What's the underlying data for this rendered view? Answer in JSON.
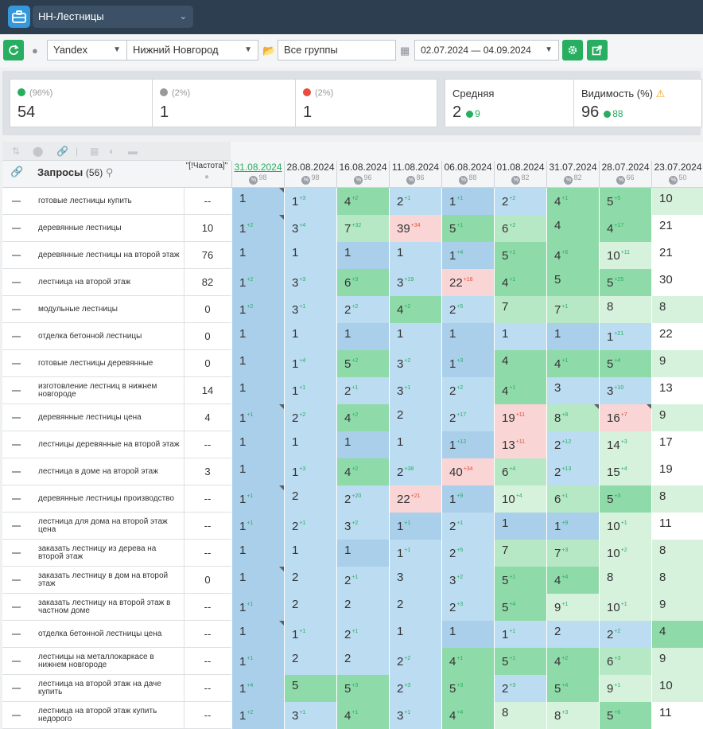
{
  "project": {
    "title": "НН-Лестницы"
  },
  "toolbar": {
    "engine": "Yandex",
    "region": "Нижний Новгород",
    "group": "Все группы",
    "daterange": "02.07.2024 — 04.09.2024"
  },
  "summary": {
    "up": {
      "pct": "(96%)",
      "value": "54"
    },
    "same": {
      "pct": "(2%)",
      "value": "1"
    },
    "down": {
      "pct": "(2%)",
      "value": "1"
    },
    "avg": {
      "title": "Средняя",
      "value": "2",
      "delta": "9"
    },
    "vis": {
      "title": "Видимость (%)",
      "value": "96",
      "delta": "88"
    }
  },
  "grid": {
    "queries_title": "Запросы",
    "queries_count": "(56)",
    "freq_title": "\"[!Частота]\"",
    "dates": [
      {
        "date": "31.08.2024",
        "vis": "98",
        "active": true
      },
      {
        "date": "28.08.2024",
        "vis": "98"
      },
      {
        "date": "16.08.2024",
        "vis": "96"
      },
      {
        "date": "11.08.2024",
        "vis": "86"
      },
      {
        "date": "06.08.2024",
        "vis": "88"
      },
      {
        "date": "01.08.2024",
        "vis": "82"
      },
      {
        "date": "31.07.2024",
        "vis": "82"
      },
      {
        "date": "28.07.2024",
        "vis": "66"
      },
      {
        "date": "23.07.2024",
        "vis": "50"
      }
    ],
    "rows": [
      {
        "q": "готовые лестницы купить",
        "f": "--",
        "c": [
          [
            "1",
            "",
            "b1",
            1
          ],
          [
            "1",
            "+3",
            "b2",
            0
          ],
          [
            "4",
            "+2",
            "g1",
            0
          ],
          [
            "2",
            "+1",
            "b2",
            0
          ],
          [
            "1",
            "+1",
            "b1",
            0
          ],
          [
            "2",
            "+2",
            "b2",
            0
          ],
          [
            "4",
            "+1",
            "g1",
            0
          ],
          [
            "5",
            "+5",
            "g1",
            0
          ],
          [
            "10",
            "",
            "g3",
            0
          ]
        ]
      },
      {
        "q": "деревянные лестницы",
        "f": "10",
        "c": [
          [
            "1",
            "+2",
            "b1",
            1
          ],
          [
            "3",
            "+4",
            "b2",
            0
          ],
          [
            "7",
            "+32",
            "g2",
            0
          ],
          [
            "39",
            "+34",
            "r",
            0
          ],
          [
            "5",
            "+1",
            "g1",
            0
          ],
          [
            "6",
            "+2",
            "g2",
            0
          ],
          [
            "4",
            "",
            "g1",
            0
          ],
          [
            "4",
            "+17",
            "g1",
            0
          ],
          [
            "21",
            "",
            "w",
            0
          ]
        ]
      },
      {
        "q": "деревянные лестницы на второй этаж",
        "f": "76",
        "c": [
          [
            "1",
            "",
            "b1",
            0
          ],
          [
            "1",
            "",
            "b2",
            0
          ],
          [
            "1",
            "",
            "b1",
            0
          ],
          [
            "1",
            "",
            "b2",
            0
          ],
          [
            "1",
            "+4",
            "b1",
            0
          ],
          [
            "5",
            "+1",
            "g1",
            0
          ],
          [
            "4",
            "+6",
            "g1",
            0
          ],
          [
            "10",
            "+11",
            "g3",
            0
          ],
          [
            "21",
            "",
            "w",
            0
          ]
        ]
      },
      {
        "q": "лестница на второй этаж",
        "f": "82",
        "c": [
          [
            "1",
            "+2",
            "b1",
            0
          ],
          [
            "3",
            "+3",
            "b2",
            0
          ],
          [
            "6",
            "+3",
            "g1",
            0
          ],
          [
            "3",
            "+19",
            "b2",
            0
          ],
          [
            "22",
            "+18",
            "r",
            0
          ],
          [
            "4",
            "+1",
            "g1",
            0
          ],
          [
            "5",
            "",
            "g1",
            0
          ],
          [
            "5",
            "+25",
            "g1",
            0
          ],
          [
            "30",
            "",
            "w",
            0
          ]
        ]
      },
      {
        "q": "модульные лестницы",
        "f": "0",
        "c": [
          [
            "1",
            "+2",
            "b1",
            0
          ],
          [
            "3",
            "+1",
            "b2",
            0
          ],
          [
            "2",
            "+2",
            "b2",
            0
          ],
          [
            "4",
            "+2",
            "g1",
            0
          ],
          [
            "2",
            "+5",
            "b2",
            0
          ],
          [
            "7",
            "",
            "g2",
            0
          ],
          [
            "7",
            "+1",
            "g2",
            0
          ],
          [
            "8",
            "",
            "g3",
            0
          ],
          [
            "8",
            "",
            "g3",
            0
          ]
        ]
      },
      {
        "q": "отделка бетонной лестницы",
        "f": "0",
        "c": [
          [
            "1",
            "",
            "b1",
            0
          ],
          [
            "1",
            "",
            "b2",
            0
          ],
          [
            "1",
            "",
            "b1",
            0
          ],
          [
            "1",
            "",
            "b2",
            0
          ],
          [
            "1",
            "",
            "b1",
            0
          ],
          [
            "1",
            "",
            "b2",
            0
          ],
          [
            "1",
            "",
            "b1",
            0
          ],
          [
            "1",
            "+21",
            "b2",
            0
          ],
          [
            "22",
            "",
            "w",
            0
          ]
        ]
      },
      {
        "q": "готовые лестницы деревянные",
        "f": "0",
        "c": [
          [
            "1",
            "",
            "b1",
            0
          ],
          [
            "1",
            "+4",
            "b2",
            0
          ],
          [
            "5",
            "+2",
            "g1",
            0
          ],
          [
            "3",
            "+2",
            "b2",
            0
          ],
          [
            "1",
            "+3",
            "b1",
            0
          ],
          [
            "4",
            "",
            "g1",
            0
          ],
          [
            "4",
            "+1",
            "g1",
            0
          ],
          [
            "5",
            "+4",
            "g1",
            0
          ],
          [
            "9",
            "",
            "g3",
            0
          ]
        ]
      },
      {
        "q": "изготовление лестниц в нижнем новгороде",
        "f": "14",
        "c": [
          [
            "1",
            "",
            "b1",
            0
          ],
          [
            "1",
            "+1",
            "b2",
            0
          ],
          [
            "2",
            "+1",
            "b2",
            0
          ],
          [
            "3",
            "+1",
            "b2",
            0
          ],
          [
            "2",
            "+2",
            "b2",
            0
          ],
          [
            "4",
            "+1",
            "g1",
            0
          ],
          [
            "3",
            "",
            "b2",
            0
          ],
          [
            "3",
            "+10",
            "b2",
            0
          ],
          [
            "13",
            "",
            "w",
            0
          ]
        ]
      },
      {
        "q": "деревянные лестницы цена",
        "f": "4",
        "c": [
          [
            "1",
            "+1",
            "b1",
            1
          ],
          [
            "2",
            "+2",
            "b2",
            0
          ],
          [
            "4",
            "+2",
            "g1",
            0
          ],
          [
            "2",
            "",
            "b2",
            0
          ],
          [
            "2",
            "+17",
            "b2",
            0
          ],
          [
            "19",
            "+11",
            "r",
            0
          ],
          [
            "8",
            "+8",
            "g2",
            1
          ],
          [
            "16",
            "+7",
            "r",
            1
          ],
          [
            "9",
            "",
            "g3",
            0
          ]
        ]
      },
      {
        "q": "лестницы деревянные на второй этаж",
        "f": "--",
        "c": [
          [
            "1",
            "",
            "b1",
            0
          ],
          [
            "1",
            "",
            "b2",
            0
          ],
          [
            "1",
            "",
            "b1",
            0
          ],
          [
            "1",
            "",
            "b2",
            0
          ],
          [
            "1",
            "+12",
            "b1",
            0
          ],
          [
            "13",
            "+11",
            "r",
            0
          ],
          [
            "2",
            "+12",
            "b2",
            0
          ],
          [
            "14",
            "+3",
            "g3",
            0
          ],
          [
            "17",
            "",
            "w",
            0
          ]
        ]
      },
      {
        "q": "лестница в доме на второй этаж",
        "f": "3",
        "c": [
          [
            "1",
            "",
            "b1",
            0
          ],
          [
            "1",
            "+3",
            "b2",
            0
          ],
          [
            "4",
            "+2",
            "g1",
            0
          ],
          [
            "2",
            "+38",
            "b2",
            0
          ],
          [
            "40",
            "+34",
            "r",
            0
          ],
          [
            "6",
            "+4",
            "g2",
            0
          ],
          [
            "2",
            "+13",
            "b2",
            0
          ],
          [
            "15",
            "+4",
            "g3",
            0
          ],
          [
            "19",
            "",
            "w",
            0
          ]
        ]
      },
      {
        "q": "деревянные лестницы производство",
        "f": "--",
        "c": [
          [
            "1",
            "+1",
            "b1",
            1
          ],
          [
            "2",
            "",
            "b2",
            0
          ],
          [
            "2",
            "+20",
            "b2",
            0
          ],
          [
            "22",
            "+21",
            "r",
            0
          ],
          [
            "1",
            "+9",
            "b1",
            0
          ],
          [
            "10",
            "+4",
            "g3",
            0
          ],
          [
            "6",
            "+1",
            "g2",
            0
          ],
          [
            "5",
            "+3",
            "g1",
            0
          ],
          [
            "8",
            "",
            "g3",
            0
          ]
        ]
      },
      {
        "q": "лестница для дома на второй этаж цена",
        "f": "--",
        "c": [
          [
            "1",
            "+1",
            "b1",
            0
          ],
          [
            "2",
            "+1",
            "b2",
            0
          ],
          [
            "3",
            "+2",
            "b2",
            0
          ],
          [
            "1",
            "+1",
            "b1",
            0
          ],
          [
            "2",
            "+1",
            "b2",
            0
          ],
          [
            "1",
            "",
            "b1",
            0
          ],
          [
            "1",
            "+9",
            "b1",
            0
          ],
          [
            "10",
            "+1",
            "g3",
            0
          ],
          [
            "11",
            "",
            "w",
            0
          ]
        ]
      },
      {
        "q": "заказать лестницу из дерева на второй этаж",
        "f": "--",
        "c": [
          [
            "1",
            "",
            "b1",
            0
          ],
          [
            "1",
            "",
            "b2",
            0
          ],
          [
            "1",
            "",
            "b1",
            0
          ],
          [
            "1",
            "+1",
            "b2",
            0
          ],
          [
            "2",
            "+5",
            "b2",
            0
          ],
          [
            "7",
            "",
            "g2",
            0
          ],
          [
            "7",
            "+3",
            "g2",
            0
          ],
          [
            "10",
            "+2",
            "g3",
            0
          ],
          [
            "8",
            "",
            "g3",
            0
          ]
        ]
      },
      {
        "q": "заказать лестницу в дом на второй этаж",
        "f": "0",
        "c": [
          [
            "1",
            "",
            "b1",
            1
          ],
          [
            "2",
            "",
            "b2",
            0
          ],
          [
            "2",
            "+1",
            "b2",
            0
          ],
          [
            "3",
            "",
            "b2",
            0
          ],
          [
            "3",
            "+2",
            "b2",
            0
          ],
          [
            "5",
            "+1",
            "g1",
            0
          ],
          [
            "4",
            "+4",
            "g1",
            0
          ],
          [
            "8",
            "",
            "g3",
            0
          ],
          [
            "8",
            "",
            "g3",
            0
          ]
        ]
      },
      {
        "q": "заказать лестницу на второй этаж в частном доме",
        "f": "--",
        "c": [
          [
            "1",
            "+1",
            "b1",
            0
          ],
          [
            "2",
            "",
            "b2",
            0
          ],
          [
            "2",
            "",
            "b2",
            0
          ],
          [
            "2",
            "",
            "b2",
            0
          ],
          [
            "2",
            "+3",
            "b2",
            0
          ],
          [
            "5",
            "+4",
            "g1",
            0
          ],
          [
            "9",
            "+1",
            "g3",
            0
          ],
          [
            "10",
            "+1",
            "g3",
            0
          ],
          [
            "9",
            "",
            "g3",
            0
          ]
        ]
      },
      {
        "q": "отделка бетонной лестницы цена",
        "f": "--",
        "c": [
          [
            "1",
            "",
            "b1",
            1
          ],
          [
            "1",
            "+1",
            "b2",
            0
          ],
          [
            "2",
            "+1",
            "b2",
            0
          ],
          [
            "1",
            "",
            "b2",
            0
          ],
          [
            "1",
            "",
            "b1",
            0
          ],
          [
            "1",
            "+1",
            "b2",
            0
          ],
          [
            "2",
            "",
            "b2",
            0
          ],
          [
            "2",
            "+2",
            "b2",
            0
          ],
          [
            "4",
            "",
            "g1",
            0
          ]
        ]
      },
      {
        "q": "лестницы на металлокаркасе в нижнем новгороде",
        "f": "--",
        "c": [
          [
            "1",
            "+1",
            "b1",
            0
          ],
          [
            "2",
            "",
            "b2",
            0
          ],
          [
            "2",
            "",
            "b2",
            0
          ],
          [
            "2",
            "+2",
            "b2",
            0
          ],
          [
            "4",
            "+1",
            "g1",
            0
          ],
          [
            "5",
            "+1",
            "g1",
            0
          ],
          [
            "4",
            "+2",
            "g1",
            0
          ],
          [
            "6",
            "+3",
            "g2",
            0
          ],
          [
            "9",
            "",
            "g3",
            0
          ]
        ]
      },
      {
        "q": "лестница на второй этаж на даче купить",
        "f": "--",
        "c": [
          [
            "1",
            "+4",
            "b1",
            0
          ],
          [
            "5",
            "",
            "g1",
            0
          ],
          [
            "5",
            "+3",
            "g1",
            0
          ],
          [
            "2",
            "+3",
            "b2",
            0
          ],
          [
            "5",
            "+3",
            "g1",
            0
          ],
          [
            "2",
            "+3",
            "b2",
            0
          ],
          [
            "5",
            "+4",
            "g1",
            0
          ],
          [
            "9",
            "+1",
            "g3",
            0
          ],
          [
            "10",
            "",
            "g3",
            0
          ]
        ]
      },
      {
        "q": "лестница на второй этаж купить недорого",
        "f": "--",
        "c": [
          [
            "1",
            "+2",
            "b1",
            0
          ],
          [
            "3",
            "+1",
            "b2",
            0
          ],
          [
            "4",
            "+1",
            "g1",
            0
          ],
          [
            "3",
            "+1",
            "b2",
            0
          ],
          [
            "4",
            "+4",
            "g1",
            0
          ],
          [
            "8",
            "",
            "g3",
            0
          ],
          [
            "8",
            "+3",
            "g3",
            0
          ],
          [
            "5",
            "+6",
            "g1",
            0
          ],
          [
            "11",
            "",
            "w",
            0
          ]
        ]
      }
    ]
  }
}
